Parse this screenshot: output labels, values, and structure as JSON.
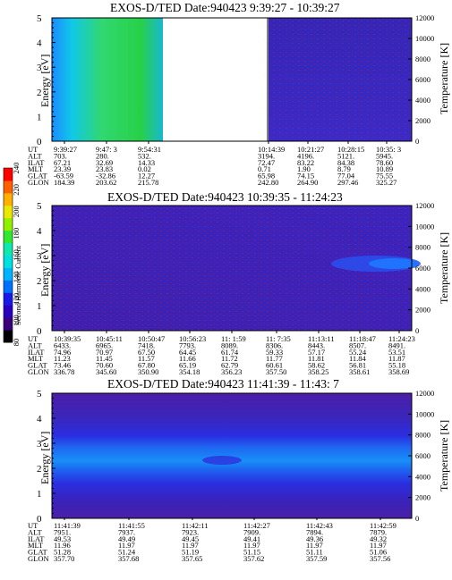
{
  "colorbar": {
    "label": "Second Harmonic Current",
    "ticks": [
      "80",
      "100",
      "120",
      "140",
      "160",
      "180",
      "200",
      "220",
      "240"
    ],
    "colors": [
      "#000000",
      "#3a007a",
      "#2a00c0",
      "#1a1ae8",
      "#0070ff",
      "#00b4ff",
      "#00e0e0",
      "#10e8b0",
      "#30e830",
      "#90f000",
      "#e8e800",
      "#ffb000",
      "#ff6000",
      "#ff0000"
    ]
  },
  "panels": [
    {
      "title": "EXOS-D/TED   Date:940423  9:39:27 - 10:39:27",
      "ylabel_left": "Energy [eV]",
      "ylabel_right": "Temperature [K]",
      "y_ticks_left": [
        "0",
        "1",
        "2",
        "3",
        "4",
        "5"
      ],
      "y_ticks_right": [
        "0",
        "2000",
        "4000",
        "6000",
        "8000",
        "10000",
        "12000"
      ],
      "ephem_labels": [
        "UT",
        "ALT",
        "ILAT",
        "MLT",
        "GLAT",
        "GLON"
      ],
      "columns": [
        {
          "UT": "9:39:27",
          "ALT": "703.",
          "ILAT": "67.21",
          "MLT": "23.39",
          "GLAT": "-63.59",
          "GLON": "184.39"
        },
        {
          "UT": "9:47: 3",
          "ALT": "280.",
          "ILAT": "32.69",
          "MLT": "23.83",
          "GLAT": "-32.86",
          "GLON": "203.62"
        },
        {
          "UT": "9:54:31",
          "ALT": "532.",
          "ILAT": "14.33",
          "MLT": "0.02",
          "GLAT": "12.27",
          "GLON": "215.78"
        },
        {
          "UT": "10:14:39",
          "ALT": "3194.",
          "ILAT": "72.47",
          "MLT": "0.71",
          "GLAT": "65.98",
          "GLON": "242.80"
        },
        {
          "UT": "10:21:27",
          "ALT": "4196.",
          "ILAT": "83.22",
          "MLT": "1.90",
          "GLAT": "74.15",
          "GLON": "264.90"
        },
        {
          "UT": "10:28:15",
          "ALT": "5121.",
          "ILAT": "84.38",
          "MLT": "8.79",
          "GLAT": "77.04",
          "GLON": "297.46"
        },
        {
          "UT": "10:35: 3",
          "ALT": "5945.",
          "ILAT": "78.60",
          "MLT": "10.89",
          "GLAT": "75.55",
          "GLON": "325.27"
        }
      ]
    },
    {
      "title": "EXOS-D/TED   Date:940423  10:39:35 - 11:24:23",
      "ylabel_left": "Energy [eV]",
      "ylabel_right": "Temperature [K]",
      "y_ticks_left": [
        "0",
        "1",
        "2",
        "3",
        "4",
        "5"
      ],
      "y_ticks_right": [
        "0",
        "2000",
        "4000",
        "6000",
        "8000",
        "10000",
        "12000"
      ],
      "ephem_labels": [
        "UT",
        "ALT",
        "ILAT",
        "MLT",
        "GLAT",
        "GLON"
      ],
      "columns": [
        {
          "UT": "10:39:35",
          "ALT": "6433.",
          "ILAT": "74.96",
          "MLT": "11.23",
          "GLAT": "73.46",
          "GLON": "336.78"
        },
        {
          "UT": "10:45:11",
          "ALT": "6965.",
          "ILAT": "70.97",
          "MLT": "11.45",
          "GLAT": "70.60",
          "GLON": "345.60"
        },
        {
          "UT": "10:50:47",
          "ALT": "7418.",
          "ILAT": "67.50",
          "MLT": "11.57",
          "GLAT": "67.80",
          "GLON": "350.90"
        },
        {
          "UT": "10:56:23",
          "ALT": "7793.",
          "ILAT": "64.45",
          "MLT": "11.66",
          "GLAT": "65.19",
          "GLON": "354.18"
        },
        {
          "UT": "11: 1:59",
          "ALT": "8089.",
          "ILAT": "61.74",
          "MLT": "11.72",
          "GLAT": "62.79",
          "GLON": "356.23"
        },
        {
          "UT": "11: 7:35",
          "ALT": "8306.",
          "ILAT": "59.33",
          "MLT": "11.77",
          "GLAT": "60.61",
          "GLON": "357.50"
        },
        {
          "UT": "11:13:11",
          "ALT": "8443.",
          "ILAT": "57.17",
          "MLT": "11.81",
          "GLAT": "58.62",
          "GLON": "358.25"
        },
        {
          "UT": "11:18:47",
          "ALT": "8507.",
          "ILAT": "55.24",
          "MLT": "11.84",
          "GLAT": "56.81",
          "GLON": "358.61"
        },
        {
          "UT": "11:24:23",
          "ALT": "8491.",
          "ILAT": "53.51",
          "MLT": "11.87",
          "GLAT": "55.18",
          "GLON": "358.69"
        }
      ]
    },
    {
      "title": "EXOS-D/TED   Date:940423  11:41:39 - 11:43: 7",
      "ylabel_left": "Energy [eV]",
      "ylabel_right": "Temperature [K]",
      "y_ticks_left": [
        "0",
        "1",
        "2",
        "3",
        "4",
        "5"
      ],
      "y_ticks_right": [
        "0",
        "2000",
        "4000",
        "6000",
        "8000",
        "10000",
        "12000"
      ],
      "ephem_labels": [
        "UT",
        "ALT",
        "ILAT",
        "MLT",
        "GLAT",
        "GLON"
      ],
      "columns": [
        {
          "UT": "11:41:39",
          "ALT": "7951.",
          "ILAT": "49.53",
          "MLT": "11.96",
          "GLAT": "51.28",
          "GLON": "357.70"
        },
        {
          "UT": "11:41:55",
          "ALT": "7937.",
          "ILAT": "49.49",
          "MLT": "11.97",
          "GLAT": "51.24",
          "GLON": "357.68"
        },
        {
          "UT": "11:42:11",
          "ALT": "7923.",
          "ILAT": "49.45",
          "MLT": "11.97",
          "GLAT": "51.19",
          "GLON": "357.65"
        },
        {
          "UT": "11:42:27",
          "ALT": "7909.",
          "ILAT": "49.41",
          "MLT": "11.97",
          "GLAT": "51.15",
          "GLON": "357.62"
        },
        {
          "UT": "11:42:43",
          "ALT": "7894.",
          "ILAT": "49.36",
          "MLT": "11.97",
          "GLAT": "51.11",
          "GLON": "357.59"
        },
        {
          "UT": "11:42:59",
          "ALT": "7879.",
          "ILAT": "49.32",
          "MLT": "11.97",
          "GLAT": "51.06",
          "GLON": "357.56"
        }
      ]
    }
  ],
  "chart_data": [
    {
      "type": "heatmap",
      "title": "EXOS-D/TED   Date:940423  9:39:27 - 10:39:27",
      "ylabel": "Energy [eV]",
      "ylabel_right": "Temperature [K]",
      "ylim": [
        0,
        5
      ],
      "ylim_right": [
        0,
        12000
      ],
      "x_ticks": [
        "9:39:27",
        "9:47: 3",
        "9:54:31",
        "10:14:39",
        "10:21:27",
        "10:28:15",
        "10:35: 3"
      ],
      "data_gap": [
        "9:58",
        "10:14"
      ],
      "colorbar_range": [
        80,
        240
      ]
    },
    {
      "type": "heatmap",
      "title": "EXOS-D/TED   Date:940423  10:39:35 - 11:24:23",
      "ylabel": "Energy [eV]",
      "ylabel_right": "Temperature [K]",
      "ylim": [
        0,
        5
      ],
      "ylim_right": [
        0,
        12000
      ],
      "x_ticks": [
        "10:39:35",
        "10:45:11",
        "10:50:47",
        "10:56:23",
        "11: 1:59",
        "11: 7:35",
        "11:13:11",
        "11:18:47",
        "11:24:23"
      ],
      "colorbar_range": [
        80,
        240
      ]
    },
    {
      "type": "heatmap",
      "title": "EXOS-D/TED   Date:940423  11:41:39 - 11:43: 7",
      "ylabel": "Energy [eV]",
      "ylabel_right": "Temperature [K]",
      "ylim": [
        0,
        5
      ],
      "ylim_right": [
        0,
        12000
      ],
      "x_ticks": [
        "11:41:39",
        "11:41:55",
        "11:42:11",
        "11:42:27",
        "11:42:43",
        "11:42:59"
      ],
      "colorbar_range": [
        80,
        240
      ]
    }
  ]
}
